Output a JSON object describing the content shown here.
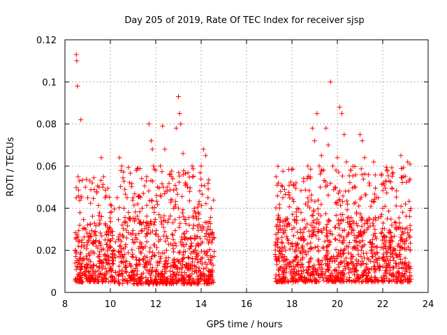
{
  "chart_data": {
    "type": "scatter",
    "title": "Day 205 of 2019, Rate Of TEC Index for receiver sjsp",
    "xlabel": "GPS time / hours",
    "ylabel": "ROTI / TECUs",
    "xlim": [
      8,
      24
    ],
    "ylim": [
      0,
      0.12
    ],
    "xticks": [
      8,
      10,
      12,
      14,
      16,
      18,
      20,
      22,
      24
    ],
    "xtick_labels": [
      "8",
      "10",
      "12",
      "14",
      "16",
      "18",
      "20",
      "22",
      "24"
    ],
    "yticks": [
      0,
      0.02,
      0.04,
      0.06,
      0.08,
      0.1,
      0.12
    ],
    "ytick_labels": [
      "0",
      "0.02",
      "0.04",
      "0.06",
      "0.08",
      "0.1",
      "0.12"
    ],
    "grid": true,
    "marker": "+",
    "color": "#ff0000",
    "series": [
      {
        "name": "ROTI",
        "x": [
          8.5,
          8.52,
          8.55,
          8.58,
          8.5,
          8.7,
          8.9,
          9.0,
          9.2,
          9.4,
          9.5,
          9.6,
          9.7,
          9.8,
          9.9,
          10.0,
          10.1,
          10.3,
          10.4,
          10.5,
          10.6,
          10.8,
          11.0,
          11.2,
          11.4,
          11.6,
          11.7,
          11.8,
          11.85,
          11.9,
          12.0,
          12.2,
          12.3,
          12.4,
          12.5,
          12.7,
          12.9,
          13.0,
          13.05,
          13.1,
          13.2,
          13.3,
          13.4,
          13.5,
          13.6,
          13.7,
          13.8,
          13.9,
          14.0,
          14.1,
          14.2,
          14.3,
          14.4,
          14.5,
          17.3,
          17.4,
          17.5,
          17.6,
          17.8,
          18.0,
          18.2,
          18.4,
          18.6,
          18.7,
          18.8,
          18.9,
          19.0,
          19.1,
          19.2,
          19.3,
          19.4,
          19.5,
          19.6,
          19.7,
          19.8,
          19.9,
          20.0,
          20.1,
          20.2,
          20.3,
          20.4,
          20.6,
          20.8,
          21.0,
          21.1,
          21.2,
          21.4,
          21.6,
          21.8,
          22.0,
          22.2,
          22.4,
          22.6,
          22.8,
          22.9,
          23.0,
          23.1,
          23.2
        ],
        "y": [
          0.113,
          0.11,
          0.098,
          0.055,
          0.045,
          0.082,
          0.05,
          0.045,
          0.052,
          0.048,
          0.05,
          0.064,
          0.055,
          0.032,
          0.025,
          0.012,
          0.018,
          0.045,
          0.064,
          0.06,
          0.04,
          0.038,
          0.045,
          0.042,
          0.04,
          0.055,
          0.08,
          0.072,
          0.068,
          0.06,
          0.058,
          0.06,
          0.079,
          0.068,
          0.05,
          0.055,
          0.078,
          0.093,
          0.085,
          0.08,
          0.066,
          0.052,
          0.05,
          0.048,
          0.06,
          0.04,
          0.035,
          0.042,
          0.06,
          0.068,
          0.065,
          0.045,
          0.03,
          0.025,
          0.055,
          0.052,
          0.048,
          0.045,
          0.035,
          0.03,
          0.036,
          0.038,
          0.042,
          0.06,
          0.055,
          0.078,
          0.072,
          0.085,
          0.06,
          0.065,
          0.058,
          0.078,
          0.07,
          0.1,
          0.06,
          0.05,
          0.064,
          0.088,
          0.085,
          0.075,
          0.062,
          0.058,
          0.05,
          0.075,
          0.072,
          0.064,
          0.052,
          0.062,
          0.045,
          0.04,
          0.035,
          0.032,
          0.03,
          0.065,
          0.055,
          0.042,
          0.062,
          0.061
        ],
        "dense_bands": [
          {
            "x_start": 8.45,
            "x_end": 10.25,
            "y_low": 0.005,
            "y_high": 0.03
          },
          {
            "x_start": 10.35,
            "x_end": 14.6,
            "y_low": 0.004,
            "y_high": 0.035
          },
          {
            "x_start": 17.25,
            "x_end": 23.25,
            "y_low": 0.005,
            "y_high": 0.035
          }
        ]
      }
    ]
  }
}
